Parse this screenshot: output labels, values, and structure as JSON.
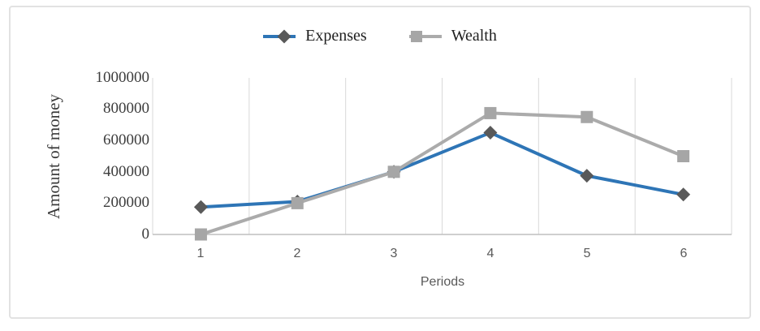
{
  "frame": {
    "background": "#ffffff",
    "border_color": "#e2e2e2"
  },
  "chart_data": {
    "type": "line",
    "title": "",
    "categories": [
      "1",
      "2",
      "3",
      "4",
      "5",
      "6"
    ],
    "series": [
      {
        "name": "Expenses",
        "values": [
          175000,
          210000,
          400000,
          650000,
          375000,
          255000
        ],
        "line_color": "#2e75b6",
        "marker": "diamond",
        "marker_color": "#595959"
      },
      {
        "name": "Wealth",
        "values": [
          0,
          200000,
          400000,
          775000,
          750000,
          500000
        ],
        "line_color": "#ababab",
        "marker": "square",
        "marker_color": "#a6a6a6"
      }
    ],
    "xlabel": "Periods",
    "ylabel": "Amount of money",
    "ylim": [
      0,
      1000000
    ],
    "yticks": [
      "1000000",
      "800000",
      "600000",
      "400000",
      "200000",
      "0"
    ],
    "grid": "vertical-major-only",
    "gridline_color": "#d9d9d9",
    "axis_line_color": "#bfbfbf",
    "legend_position": "top"
  }
}
